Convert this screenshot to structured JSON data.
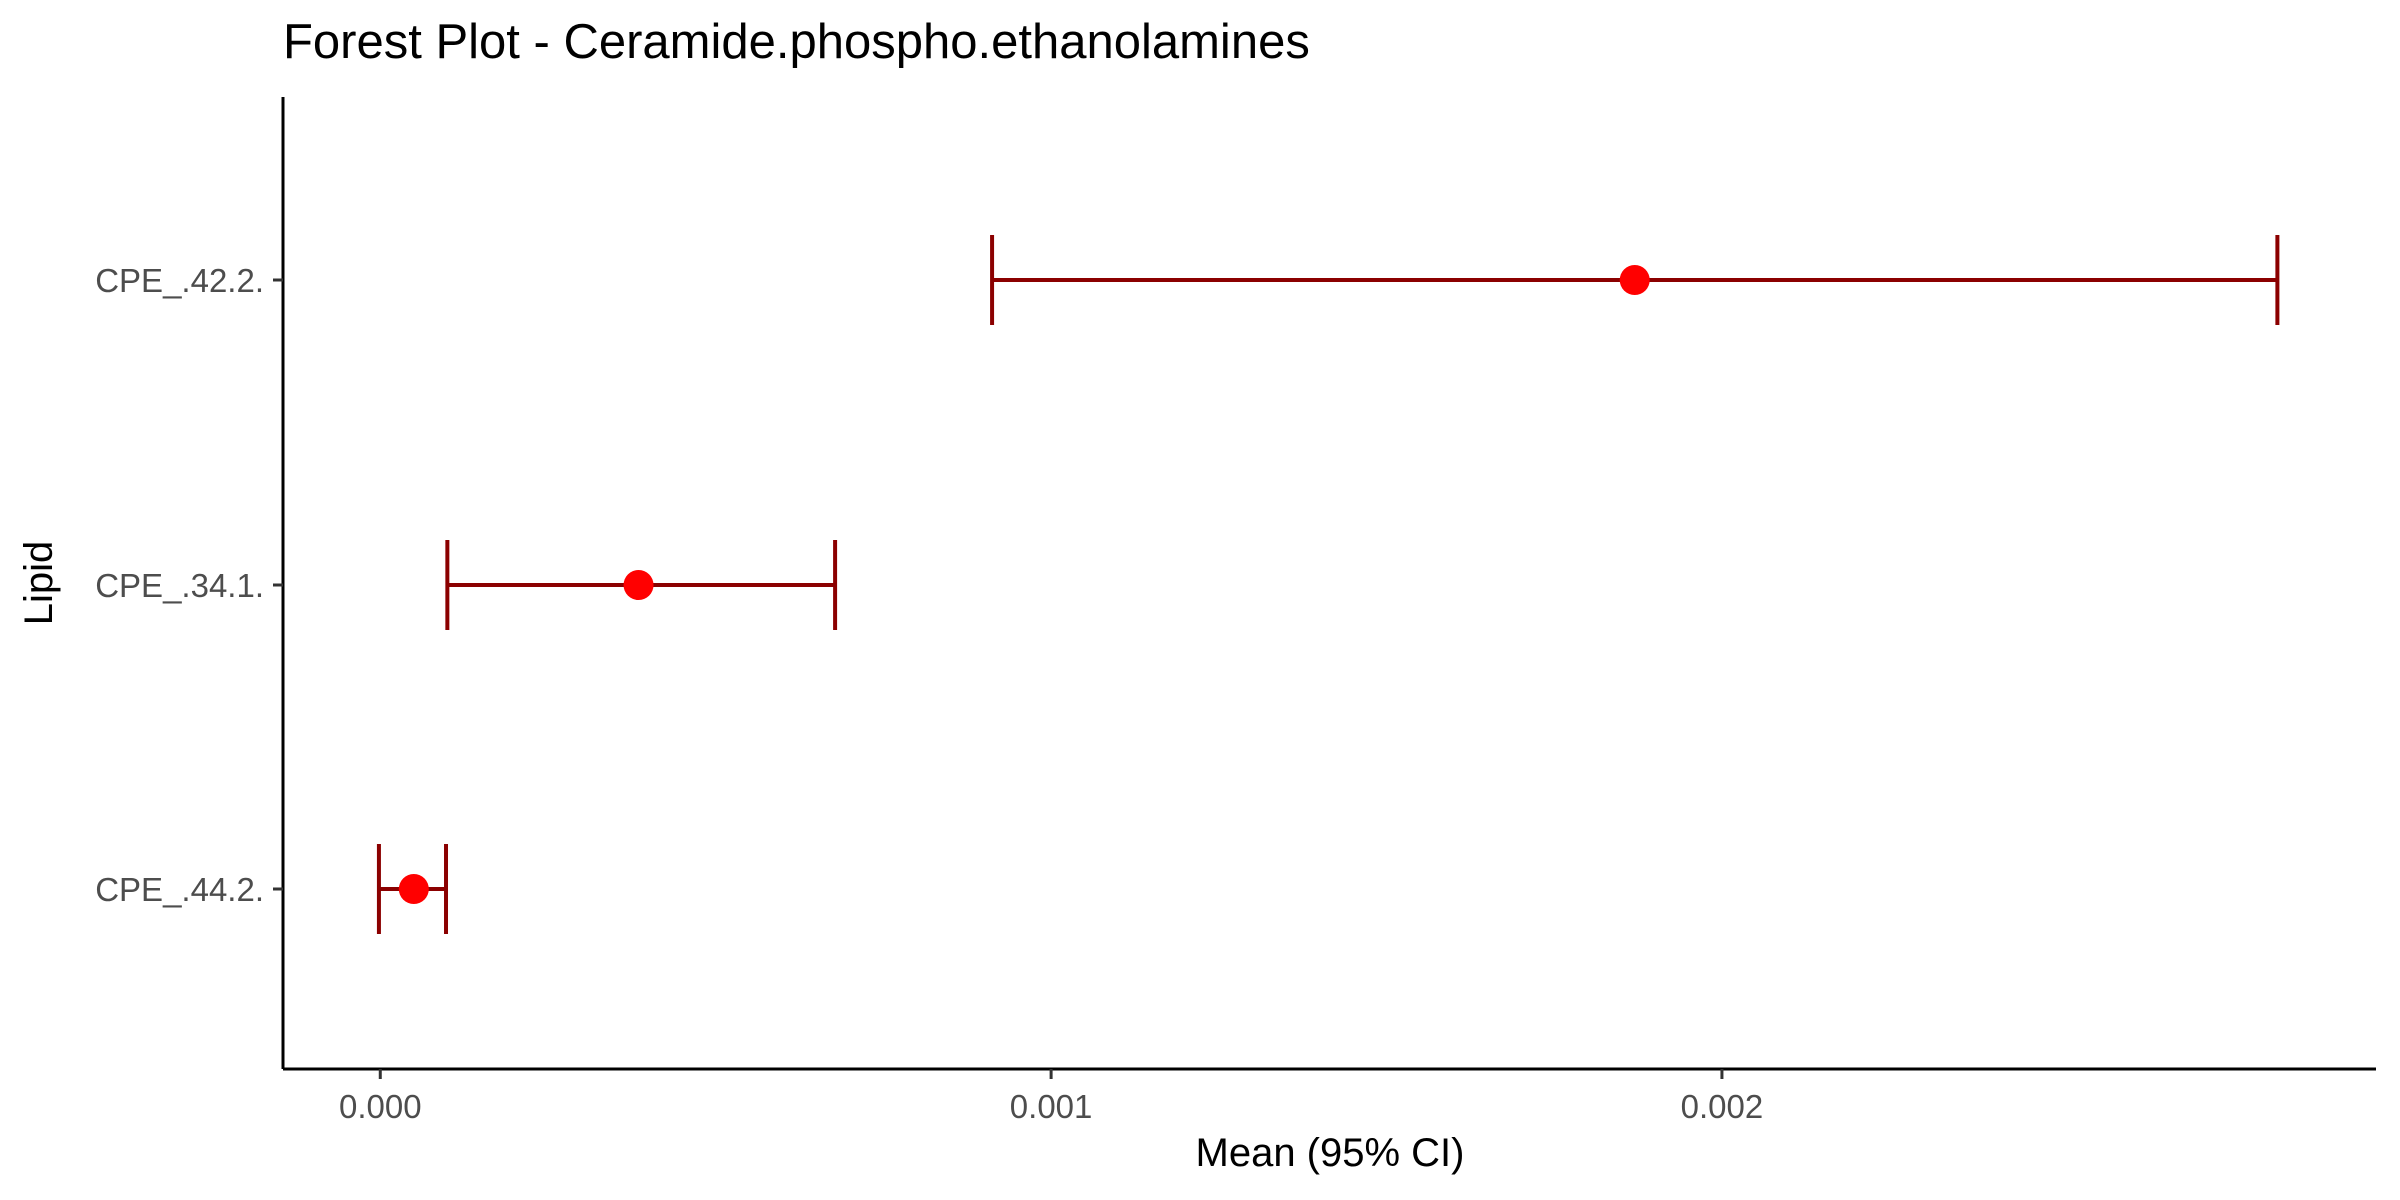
{
  "chart_data": {
    "type": "scatter",
    "subtype": "forest-plot",
    "title": "Forest Plot - Ceramide.phospho.ethanolamines",
    "xlabel": "Mean (95% CI)",
    "ylabel": "Lipid",
    "xlim": [
      -0.000145,
      0.002975
    ],
    "x_ticks": [
      0.0,
      0.001,
      0.002
    ],
    "x_tick_labels": [
      "0.000",
      "0.001",
      "0.002"
    ],
    "categories": [
      "CPE_.42.2.",
      "CPE_.34.1.",
      "CPE_.44.2."
    ],
    "series": [
      {
        "points": [
          {
            "label": "CPE_.42.2.",
            "mean": 0.00187,
            "lower": 0.000912,
            "upper": 0.002828
          },
          {
            "label": "CPE_.34.1.",
            "mean": 0.000385,
            "lower": 0.0001,
            "upper": 0.000678
          },
          {
            "label": "CPE_.44.2.",
            "mean": 5e-05,
            "lower": -2e-06,
            "upper": 9.8e-05
          }
        ]
      }
    ],
    "grid": false,
    "legend": "none",
    "colors": {
      "point": "#ff0000",
      "interval": "#8b0000"
    }
  }
}
